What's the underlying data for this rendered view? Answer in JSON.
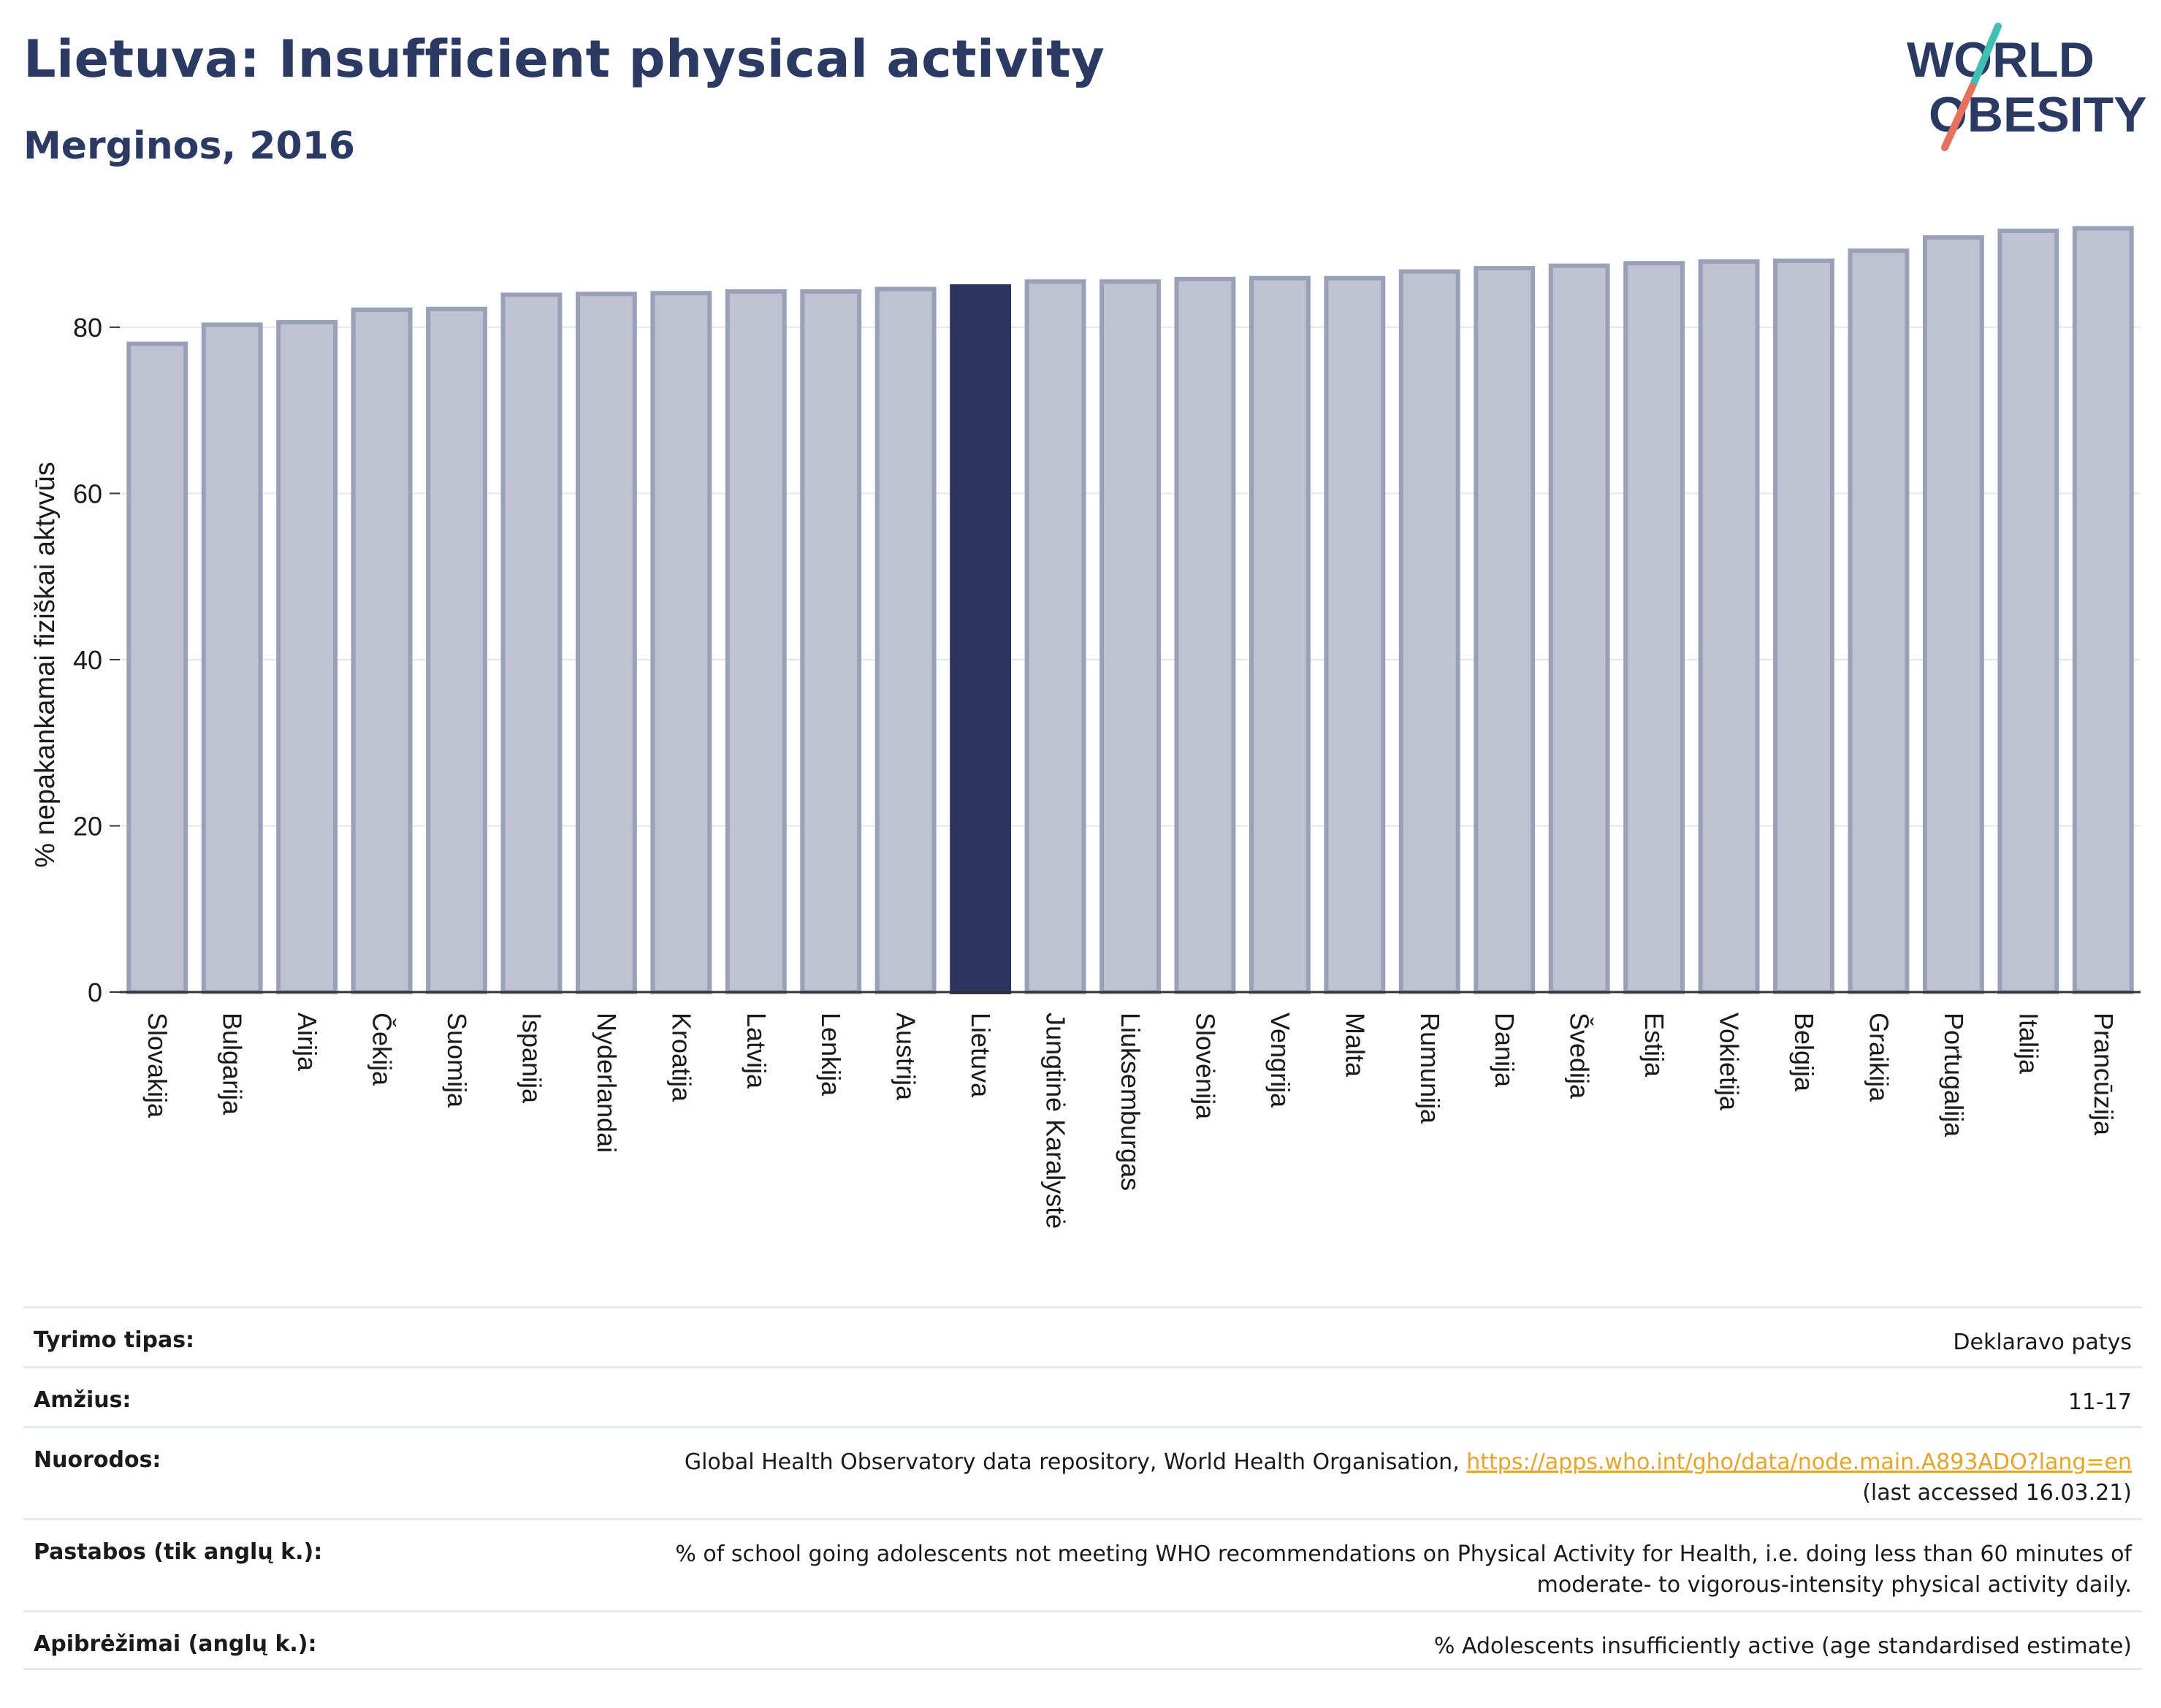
{
  "header": {
    "title": "Lietuva: Insufficient physical activity",
    "subtitle": "Merginos, 2016"
  },
  "logo": {
    "line1": "WORLD",
    "line2": "OBESITY",
    "colors": {
      "text": "#2b3a63",
      "slash_top": "#3fbfb6",
      "slash_bottom": "#e8705f"
    }
  },
  "chart_data": {
    "type": "bar",
    "title": "Lietuva: Insufficient physical activity",
    "subtitle": "Merginos, 2016",
    "xlabel": "",
    "ylabel": "% nepakankamai fiziškai aktyvūs",
    "ylim": [
      0,
      93
    ],
    "yticks": [
      0,
      20,
      40,
      60,
      80
    ],
    "grid": true,
    "highlight": "Lietuva",
    "colors": {
      "bar": "#bfc3d1",
      "bar_border": "#9aa0b7",
      "highlight": "#2b3560"
    },
    "categories": [
      "Slovakija",
      "Bulgarija",
      "Airija",
      "Čekija",
      "Suomija",
      "Ispanija",
      "Nyderlandai",
      "Kroatija",
      "Latvija",
      "Lenkija",
      "Austrija",
      "Lietuva",
      "Jungtinė Karalystė",
      "Liuksemburgas",
      "Slovėnija",
      "Vengrija",
      "Malta",
      "Rumunija",
      "Danija",
      "Švedija",
      "Estija",
      "Vokietija",
      "Belgija",
      "Graikija",
      "Portugalija",
      "Italija",
      "Prancūzija"
    ],
    "values": [
      78.0,
      80.3,
      80.6,
      82.1,
      82.2,
      83.9,
      84.0,
      84.1,
      84.3,
      84.3,
      84.6,
      84.9,
      85.5,
      85.5,
      85.8,
      85.9,
      85.9,
      86.7,
      87.1,
      87.4,
      87.7,
      87.9,
      88.0,
      89.2,
      90.8,
      91.6,
      91.9
    ]
  },
  "meta": {
    "rows": [
      {
        "label": "Tyrimo tipas:",
        "value": "Deklaravo patys"
      },
      {
        "label": "Amžius:",
        "value": "11-17"
      },
      {
        "label": "Nuorodos:",
        "value": "Global Health Observatory data repository, World Health Organisation, ",
        "link": "https://apps.who.int/gho/data/node.main.A893ADO?lang=en",
        "value2": "(last accessed 16.03.21)"
      },
      {
        "label": "Pastabos (tik anglų k.):",
        "value": "% of school going adolescents not meeting WHO recommendations on Physical Activity for Health, i.e. doing less than 60 minutes of",
        "value2": "moderate- to vigorous-intensity physical activity daily."
      },
      {
        "label": "Apibrėžimai (anglų k.):",
        "value": "% Adolescents insufficiently active (age standardised estimate)"
      }
    ]
  }
}
